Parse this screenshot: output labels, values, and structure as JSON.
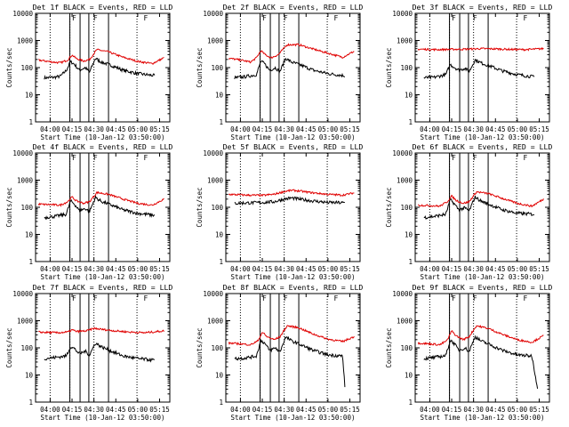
{
  "figure": {
    "x_tick_labels": [
      "04:00",
      "04:15",
      "04:30",
      "04:45",
      "05:00",
      "05:15"
    ],
    "xlabel": "Start Time (10-Jan-12 03:50:00)",
    "ylabel": "Counts/sec",
    "y_tick_labels": [
      "1",
      "10",
      "100",
      "1000",
      "10000"
    ],
    "flag_label": "F",
    "series_names": [
      "Events",
      "LLD"
    ],
    "colors": {
      "events": "#000000",
      "lld": "#e00000",
      "axes": "#000000",
      "background": "#ffffff"
    }
  },
  "chart_data": [
    {
      "type": "line",
      "panel": 1,
      "title": "Det 1f BLACK = Events, RED = LLD",
      "xlabel": "Start Time (10-Jan-12 03:50:00)",
      "ylabel": "Counts/sec",
      "xlim_minutes": [
        0,
        92
      ],
      "ylim": [
        1,
        10000
      ],
      "yscale": "log",
      "x_ticks_minutes": [
        10,
        25,
        40,
        55,
        70,
        85
      ],
      "solid_markers_minutes": [
        23.5,
        30.5,
        36.5,
        50
      ],
      "dotted_markers_minutes": [
        10,
        23.5,
        40,
        69.5
      ],
      "flags_minutes": [
        25,
        39.5,
        74
      ],
      "series": [
        {
          "name": "Events",
          "x_minutes": [
            6,
            13,
            17,
            21,
            24,
            26.5,
            30,
            34,
            37,
            41,
            45,
            52,
            60,
            70,
            82
          ],
          "values": [
            42,
            44,
            48,
            78,
            165,
            135,
            80,
            100,
            68,
            220,
            160,
            120,
            80,
            60,
            50
          ]
        },
        {
          "name": "LLD",
          "x_minutes": [
            2,
            10,
            17,
            22,
            25,
            28,
            33,
            37,
            42,
            50,
            60,
            70,
            80,
            88
          ],
          "values": [
            190,
            165,
            150,
            190,
            290,
            215,
            175,
            200,
            460,
            380,
            240,
            170,
            140,
            230
          ]
        }
      ]
    },
    {
      "type": "line",
      "panel": 2,
      "title": "Det 2f BLACK = Events, RED = LLD",
      "xlabel": "Start Time (10-Jan-12 03:50:00)",
      "ylabel": "Counts/sec",
      "xlim_minutes": [
        0,
        92
      ],
      "ylim": [
        1,
        10000
      ],
      "yscale": "log",
      "x_ticks_minutes": [
        10,
        25,
        40,
        55,
        70,
        85
      ],
      "solid_markers_minutes": [
        23.5,
        30.5,
        36.5,
        50
      ],
      "dotted_markers_minutes": [
        10,
        23.5,
        40,
        69.5
      ],
      "flags_minutes": [
        25,
        39.5,
        74
      ],
      "series": [
        {
          "name": "Events",
          "x_minutes": [
            6,
            13,
            21,
            24,
            26.5,
            30,
            34,
            37,
            41,
            45,
            52,
            60,
            70,
            82
          ],
          "values": [
            42,
            46,
            55,
            170,
            140,
            80,
            100,
            70,
            220,
            160,
            120,
            80,
            60,
            50
          ]
        },
        {
          "name": "LLD",
          "x_minutes": [
            2,
            10,
            17,
            21,
            24,
            27,
            31,
            36,
            42,
            50,
            60,
            70,
            80,
            88
          ],
          "values": [
            220,
            190,
            160,
            230,
            420,
            300,
            230,
            300,
            700,
            700,
            480,
            340,
            240,
            400
          ]
        }
      ]
    },
    {
      "type": "line",
      "panel": 3,
      "title": "Det 3f BLACK = Events, RED = LLD",
      "xlabel": "Start Time (10-Jan-12 03:50:00)",
      "ylabel": "Counts/sec",
      "xlim_minutes": [
        0,
        92
      ],
      "ylim": [
        1,
        10000
      ],
      "yscale": "log",
      "x_ticks_minutes": [
        10,
        25,
        40,
        55,
        70,
        85
      ],
      "solid_markers_minutes": [
        23.5,
        30.5,
        36.5,
        50
      ],
      "dotted_markers_minutes": [
        10,
        23.5,
        40,
        69.5
      ],
      "flags_minutes": [
        25,
        39.5,
        74
      ],
      "series": [
        {
          "name": "Events",
          "x_minutes": [
            6,
            13,
            21,
            24,
            26.5,
            30,
            34,
            37,
            41,
            45,
            52,
            60,
            70,
            82
          ],
          "values": [
            42,
            44,
            55,
            130,
            105,
            80,
            95,
            70,
            195,
            150,
            110,
            75,
            55,
            45
          ]
        },
        {
          "name": "LLD",
          "x_minutes": [
            2,
            15,
            25,
            35,
            45,
            55,
            65,
            75,
            88
          ],
          "values": [
            480,
            460,
            470,
            480,
            500,
            490,
            470,
            460,
            500
          ]
        }
      ]
    },
    {
      "type": "line",
      "panel": 4,
      "title": "Det 4f BLACK = Events, RED = LLD",
      "xlabel": "Start Time (10-Jan-12 03:50:00)",
      "ylabel": "Counts/sec",
      "xlim_minutes": [
        0,
        92
      ],
      "ylim": [
        1,
        10000
      ],
      "yscale": "log",
      "x_ticks_minutes": [
        10,
        25,
        40,
        55,
        70,
        85
      ],
      "solid_markers_minutes": [
        23.5,
        30.5,
        36.5,
        50
      ],
      "dotted_markers_minutes": [
        10,
        23.5,
        40,
        69.5
      ],
      "flags_minutes": [
        25,
        39.5,
        74
      ],
      "series": [
        {
          "name": "Events",
          "x_minutes": [
            6,
            13,
            21,
            24,
            26.5,
            30,
            34,
            37,
            41,
            45,
            52,
            60,
            70,
            82
          ],
          "values": [
            42,
            46,
            55,
            170,
            135,
            75,
            90,
            70,
            230,
            165,
            120,
            80,
            60,
            50
          ]
        },
        {
          "name": "LLD",
          "x_minutes": [
            2,
            10,
            17,
            22,
            25,
            28,
            33,
            37,
            42,
            50,
            60,
            70,
            80,
            88
          ],
          "values": [
            130,
            125,
            120,
            160,
            240,
            170,
            140,
            160,
            350,
            300,
            200,
            140,
            120,
            200
          ]
        }
      ]
    },
    {
      "type": "line",
      "panel": 5,
      "title": "Det 5f BLACK = Events, RED = LLD",
      "xlabel": "Start Time (10-Jan-12 03:50:00)",
      "ylabel": "Counts/sec",
      "xlim_minutes": [
        0,
        92
      ],
      "ylim": [
        1,
        10000
      ],
      "yscale": "log",
      "x_ticks_minutes": [
        10,
        25,
        40,
        55,
        70,
        85
      ],
      "solid_markers_minutes": [],
      "dotted_markers_minutes": [
        10,
        23.5,
        40,
        69.5
      ],
      "flags_minutes": [],
      "series": [
        {
          "name": "Events",
          "x_minutes": [
            6,
            15,
            25,
            33,
            40,
            45,
            50,
            60,
            70,
            82
          ],
          "values": [
            140,
            145,
            150,
            160,
            200,
            220,
            200,
            170,
            150,
            145
          ]
        },
        {
          "name": "LLD",
          "x_minutes": [
            2,
            15,
            25,
            33,
            40,
            45,
            50,
            60,
            70,
            80,
            88
          ],
          "values": [
            300,
            280,
            275,
            300,
            380,
            420,
            400,
            340,
            300,
            280,
            340
          ]
        }
      ]
    },
    {
      "type": "line",
      "panel": 6,
      "title": "Det 6f BLACK = Events, RED = LLD",
      "xlabel": "Start Time (10-Jan-12 03:50:00)",
      "ylabel": "Counts/sec",
      "xlim_minutes": [
        0,
        92
      ],
      "ylim": [
        1,
        10000
      ],
      "yscale": "log",
      "x_ticks_minutes": [
        10,
        25,
        40,
        55,
        70,
        85
      ],
      "solid_markers_minutes": [
        23.5,
        30.5,
        36.5,
        50
      ],
      "dotted_markers_minutes": [
        10,
        23.5,
        40,
        69.5
      ],
      "flags_minutes": [
        25,
        39.5,
        74
      ],
      "series": [
        {
          "name": "Events",
          "x_minutes": [
            6,
            13,
            21,
            24,
            26.5,
            30,
            34,
            37,
            41,
            45,
            52,
            60,
            70,
            82
          ],
          "values": [
            42,
            46,
            55,
            190,
            140,
            80,
            95,
            72,
            240,
            170,
            120,
            80,
            60,
            55
          ]
        },
        {
          "name": "LLD",
          "x_minutes": [
            2,
            10,
            17,
            22,
            25,
            28,
            33,
            37,
            42,
            50,
            60,
            70,
            80,
            88
          ],
          "values": [
            120,
            115,
            110,
            160,
            260,
            180,
            140,
            160,
            370,
            320,
            210,
            140,
            110,
            200
          ]
        }
      ]
    },
    {
      "type": "line",
      "panel": 7,
      "title": "Det 7f BLACK = Events, RED = LLD",
      "xlabel": "Start Time (10-Jan-12 03:50:00)",
      "ylabel": "Counts/sec",
      "xlim_minutes": [
        0,
        92
      ],
      "ylim": [
        1,
        10000
      ],
      "yscale": "log",
      "x_ticks_minutes": [
        10,
        25,
        40,
        55,
        70,
        85
      ],
      "solid_markers_minutes": [
        23.5,
        30.5,
        36.5,
        50
      ],
      "dotted_markers_minutes": [
        10,
        23.5,
        40,
        69.5
      ],
      "flags_minutes": [
        25,
        39.5,
        74
      ],
      "series": [
        {
          "name": "Events",
          "x_minutes": [
            6,
            13,
            21,
            24,
            26.5,
            30,
            34,
            37,
            41,
            45,
            52,
            60,
            70,
            82
          ],
          "values": [
            40,
            44,
            50,
            110,
            95,
            60,
            75,
            55,
            150,
            110,
            75,
            50,
            40,
            35
          ]
        },
        {
          "name": "LLD",
          "x_minutes": [
            2,
            15,
            22,
            25,
            28,
            35,
            40,
            45,
            55,
            65,
            75,
            88
          ],
          "values": [
            380,
            360,
            380,
            460,
            400,
            420,
            520,
            480,
            420,
            380,
            360,
            420
          ]
        }
      ]
    },
    {
      "type": "line",
      "panel": 8,
      "title": "Det 8f BLACK = Events, RED = LLD",
      "xlabel": "Start Time (10-Jan-12 03:50:00)",
      "ylabel": "Counts/sec",
      "xlim_minutes": [
        0,
        92
      ],
      "ylim": [
        1,
        10000
      ],
      "yscale": "log",
      "x_ticks_minutes": [
        10,
        25,
        40,
        55,
        70,
        85
      ],
      "solid_markers_minutes": [
        23.5,
        30.5,
        36.5,
        50
      ],
      "dotted_markers_minutes": [
        10,
        23.5,
        40,
        69.5
      ],
      "flags_minutes": [
        25,
        39.5,
        74
      ],
      "series": [
        {
          "name": "Events",
          "x_minutes": [
            6,
            13,
            21,
            24,
            26.5,
            30,
            34,
            37,
            41,
            45,
            52,
            60,
            70,
            80,
            81,
            82
          ],
          "values": [
            40,
            42,
            50,
            190,
            150,
            80,
            100,
            70,
            250,
            180,
            125,
            80,
            55,
            50,
            10,
            2
          ]
        },
        {
          "name": "LLD",
          "x_minutes": [
            2,
            10,
            17,
            22,
            25,
            28,
            33,
            37,
            42,
            50,
            60,
            70,
            80,
            88
          ],
          "values": [
            150,
            140,
            130,
            180,
            380,
            260,
            200,
            250,
            650,
            550,
            320,
            210,
            170,
            260
          ]
        }
      ]
    },
    {
      "type": "line",
      "panel": 9,
      "title": "Det 9f BLACK = Events, RED = LLD",
      "xlabel": "Start Time (10-Jan-12 03:50:00)",
      "ylabel": "Counts/sec",
      "xlim_minutes": [
        0,
        92
      ],
      "ylim": [
        1,
        10000
      ],
      "yscale": "log",
      "x_ticks_minutes": [
        10,
        25,
        40,
        55,
        70,
        85
      ],
      "solid_markers_minutes": [
        23.5,
        30.5,
        36.5,
        50
      ],
      "dotted_markers_minutes": [
        10,
        23.5,
        40,
        69.5
      ],
      "flags_minutes": [
        25,
        39.5,
        74
      ],
      "series": [
        {
          "name": "Events",
          "x_minutes": [
            6,
            13,
            21,
            24,
            26.5,
            30,
            34,
            37,
            41,
            45,
            52,
            60,
            70,
            80,
            82,
            84
          ],
          "values": [
            40,
            44,
            52,
            190,
            150,
            80,
            100,
            72,
            260,
            180,
            125,
            80,
            55,
            50,
            12,
            3
          ]
        },
        {
          "name": "LLD",
          "x_minutes": [
            2,
            10,
            17,
            22,
            25,
            28,
            33,
            37,
            42,
            50,
            60,
            70,
            80,
            88
          ],
          "values": [
            150,
            140,
            130,
            190,
            420,
            280,
            200,
            260,
            650,
            520,
            310,
            200,
            160,
            280
          ]
        }
      ]
    }
  ]
}
